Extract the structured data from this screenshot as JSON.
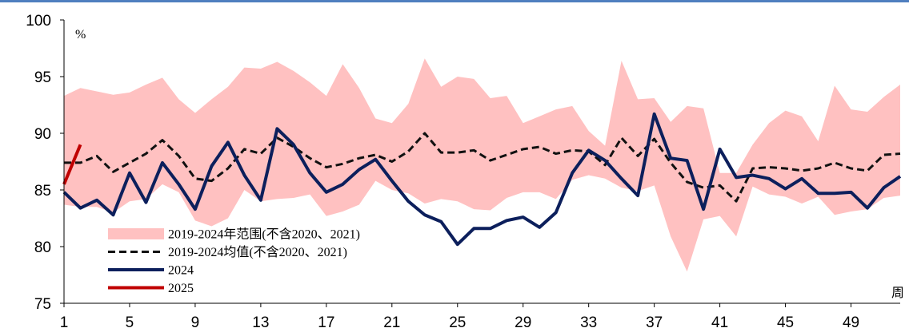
{
  "chart_data": {
    "type": "line",
    "y_label": "%",
    "x_label": "周",
    "x": [
      1,
      2,
      3,
      4,
      5,
      6,
      7,
      8,
      9,
      10,
      11,
      12,
      13,
      14,
      15,
      16,
      17,
      18,
      19,
      20,
      21,
      22,
      23,
      24,
      25,
      26,
      27,
      28,
      29,
      30,
      31,
      32,
      33,
      34,
      35,
      36,
      37,
      38,
      39,
      40,
      41,
      42,
      43,
      44,
      45,
      46,
      47,
      48,
      49,
      50,
      51,
      52
    ],
    "xlim": [
      1,
      52
    ],
    "xticks": [
      1,
      5,
      9,
      13,
      17,
      21,
      25,
      29,
      33,
      37,
      41,
      45,
      49
    ],
    "ylim": [
      75,
      100
    ],
    "yticks": [
      75,
      80,
      85,
      90,
      95,
      100
    ],
    "series": [
      {
        "name": "2019-2024年范围(不含2020、2021)",
        "kind": "band",
        "color": "#ffc1c1",
        "upper": [
          93.3,
          94.0,
          93.7,
          93.4,
          93.6,
          94.3,
          94.9,
          93.0,
          91.8,
          93.0,
          94.1,
          95.8,
          95.7,
          96.3,
          95.5,
          94.5,
          93.3,
          96.1,
          94.0,
          91.3,
          90.9,
          92.6,
          96.6,
          94.1,
          95.0,
          94.8,
          93.1,
          93.3,
          90.9,
          91.5,
          92.1,
          92.4,
          90.2,
          88.9,
          96.4,
          93.0,
          93.1,
          91.0,
          92.4,
          92.2,
          86.5,
          86.5,
          89.0,
          90.9,
          92.0,
          91.5,
          89.3,
          94.2,
          92.1,
          91.9,
          93.2,
          94.3
        ],
        "lower": [
          83.7,
          83.5,
          83.5,
          83.0,
          84.0,
          84.2,
          85.5,
          84.8,
          82.3,
          81.8,
          82.5,
          85.0,
          84.0,
          84.2,
          84.3,
          84.6,
          82.7,
          83.1,
          83.7,
          85.8,
          85.0,
          84.7,
          83.8,
          84.2,
          84.0,
          83.3,
          83.2,
          84.3,
          84.8,
          84.8,
          84.2,
          85.9,
          86.3,
          86.0,
          85.2,
          84.9,
          85.4,
          80.9,
          77.8,
          82.4,
          82.7,
          80.9,
          85.3,
          84.6,
          84.4,
          83.8,
          84.4,
          82.8,
          83.1,
          83.3,
          84.3,
          84.5
        ]
      },
      {
        "name": "2019-2024均值(不含2020、2021)",
        "kind": "dashed",
        "color": "#111111",
        "values": [
          87.4,
          87.4,
          88.0,
          86.6,
          87.4,
          88.2,
          89.4,
          88.0,
          86.0,
          85.8,
          86.9,
          88.6,
          88.2,
          89.6,
          88.8,
          87.8,
          87.0,
          87.3,
          87.8,
          88.1,
          87.5,
          88.4,
          90.0,
          88.3,
          88.3,
          88.5,
          87.6,
          88.1,
          88.6,
          88.8,
          88.2,
          88.5,
          88.4,
          87.2,
          89.6,
          88.0,
          89.5,
          87.4,
          85.7,
          85.2,
          85.4,
          84.0,
          86.9,
          87.0,
          86.9,
          86.7,
          86.9,
          87.4,
          86.9,
          86.7,
          88.1,
          88.2
        ]
      },
      {
        "name": "2024",
        "kind": "solid",
        "color": "#0c1f5c",
        "values": [
          84.8,
          83.4,
          84.1,
          82.8,
          86.5,
          83.9,
          87.4,
          85.5,
          83.3,
          87.1,
          89.2,
          86.3,
          84.1,
          90.4,
          89.0,
          86.5,
          84.8,
          85.5,
          86.8,
          87.7,
          85.8,
          84.0,
          82.8,
          82.2,
          80.2,
          81.6,
          81.6,
          82.3,
          82.6,
          81.7,
          83.0,
          86.5,
          88.5,
          87.6,
          86.0,
          84.5,
          91.7,
          87.8,
          87.6,
          83.3,
          88.6,
          86.1,
          86.3,
          86.0,
          85.1,
          86.0,
          84.7,
          84.7,
          84.8,
          83.4,
          85.2,
          86.2
        ]
      },
      {
        "name": "2025",
        "kind": "solid",
        "color": "#c00000",
        "values": [
          85.5,
          89.0,
          null,
          null,
          null,
          null,
          null,
          null,
          null,
          null,
          null,
          null,
          null,
          null,
          null,
          null,
          null,
          null,
          null,
          null,
          null,
          null,
          null,
          null,
          null,
          null,
          null,
          null,
          null,
          null,
          null,
          null,
          null,
          null,
          null,
          null,
          null,
          null,
          null,
          null,
          null,
          null,
          null,
          null,
          null,
          null,
          null,
          null,
          null,
          null,
          null,
          null
        ]
      }
    ]
  }
}
